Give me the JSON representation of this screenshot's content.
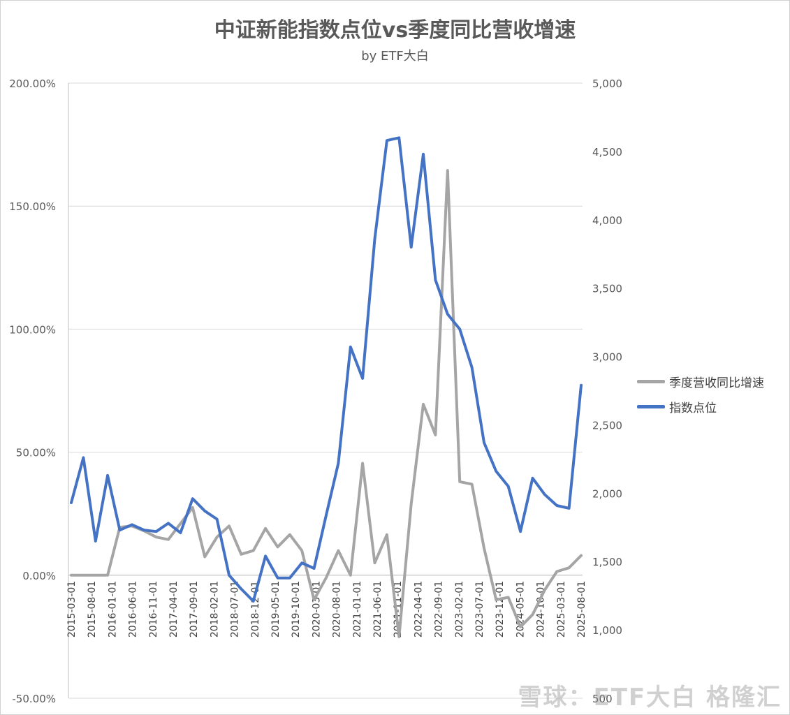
{
  "title": "中证新能指数点位vs季度同比营收增速",
  "subtitle": "by ETF大白",
  "watermark": "雪球：ETF大白 格隆汇",
  "colors": {
    "growth": "#a5a5a5",
    "index": "#4472c4",
    "grid": "#d9d9d9",
    "axis_text": "#595959"
  },
  "chart_data": {
    "type": "line",
    "title": "中证新能指数点位vs季度同比营收增速",
    "subtitle": "by ETF大白",
    "x_tick_labels": [
      "2015-03-01",
      "2015-08-01",
      "2016-01-01",
      "2016-06-01",
      "2016-11-01",
      "2017-04-01",
      "2017-09-01",
      "2018-02-01",
      "2018-07-01",
      "2018-12-01",
      "2019-05-01",
      "2019-10-01",
      "2020-03-01",
      "2020-08-01",
      "2021-01-01",
      "2021-06-01",
      "2021-11-01",
      "2022-04-01",
      "2022-09-01",
      "2023-02-01",
      "2023-07-01",
      "2023-12-01",
      "2024-05-01",
      "2024-10-01",
      "2025-03-01",
      "2025-08-01"
    ],
    "y_left": {
      "min": -50,
      "max": 200,
      "step": 50,
      "tick_labels": [
        "200.00%",
        "150.00%",
        "100.00%",
        "50.00%",
        "0.00%",
        "-50.00%"
      ]
    },
    "y_right": {
      "min": 500,
      "max": 5000,
      "step": 500,
      "tick_labels": [
        "5,000",
        "4,500",
        "4,000",
        "3,500",
        "3,000",
        "2,500",
        "2,000",
        "1,500",
        "1,000",
        "500"
      ]
    },
    "x": [
      "2015-03",
      "2015-06",
      "2015-09",
      "2015-12",
      "2016-03",
      "2016-06",
      "2016-09",
      "2016-12",
      "2017-03",
      "2017-06",
      "2017-09",
      "2017-12",
      "2018-03",
      "2018-06",
      "2018-09",
      "2018-12",
      "2019-03",
      "2019-06",
      "2019-09",
      "2019-12",
      "2020-03",
      "2020-06",
      "2020-09",
      "2020-12",
      "2021-03",
      "2021-06",
      "2021-09",
      "2021-12",
      "2022-03",
      "2022-06",
      "2022-09",
      "2022-12",
      "2023-03",
      "2023-06",
      "2023-09",
      "2023-12",
      "2024-03",
      "2024-06",
      "2024-09",
      "2024-12",
      "2025-03",
      "2025-06",
      "2025-09"
    ],
    "series": [
      {
        "name": "季度营收同比增速",
        "axis": "left",
        "values": [
          0,
          0,
          0,
          0,
          19.5,
          20,
          18,
          15.5,
          14.5,
          21,
          27.5,
          7.5,
          15.5,
          20,
          8.5,
          10,
          19,
          11.5,
          16.5,
          10,
          -10,
          -1,
          10,
          0,
          45.5,
          5,
          16.5,
          -25,
          29,
          69.5,
          57,
          164.5,
          38,
          37,
          11,
          -10,
          -9,
          -21,
          -16,
          -6,
          1.5,
          3,
          8
        ]
      },
      {
        "name": "指数点位",
        "axis": "right",
        "values": [
          1930,
          2260,
          1650,
          2130,
          1730,
          1770,
          1730,
          1720,
          1780,
          1710,
          1960,
          1870,
          1810,
          1400,
          1300,
          1210,
          1540,
          1380,
          1380,
          1490,
          1450,
          1840,
          2220,
          3070,
          2840,
          3860,
          4580,
          4600,
          3800,
          4480,
          3560,
          3310,
          3200,
          2920,
          2370,
          2160,
          2050,
          1720,
          2110,
          1990,
          1910,
          1890,
          2790
        ]
      }
    ],
    "legend": [
      "季度营收同比增速",
      "指数点位"
    ],
    "legend_position": "right",
    "grid": true
  }
}
